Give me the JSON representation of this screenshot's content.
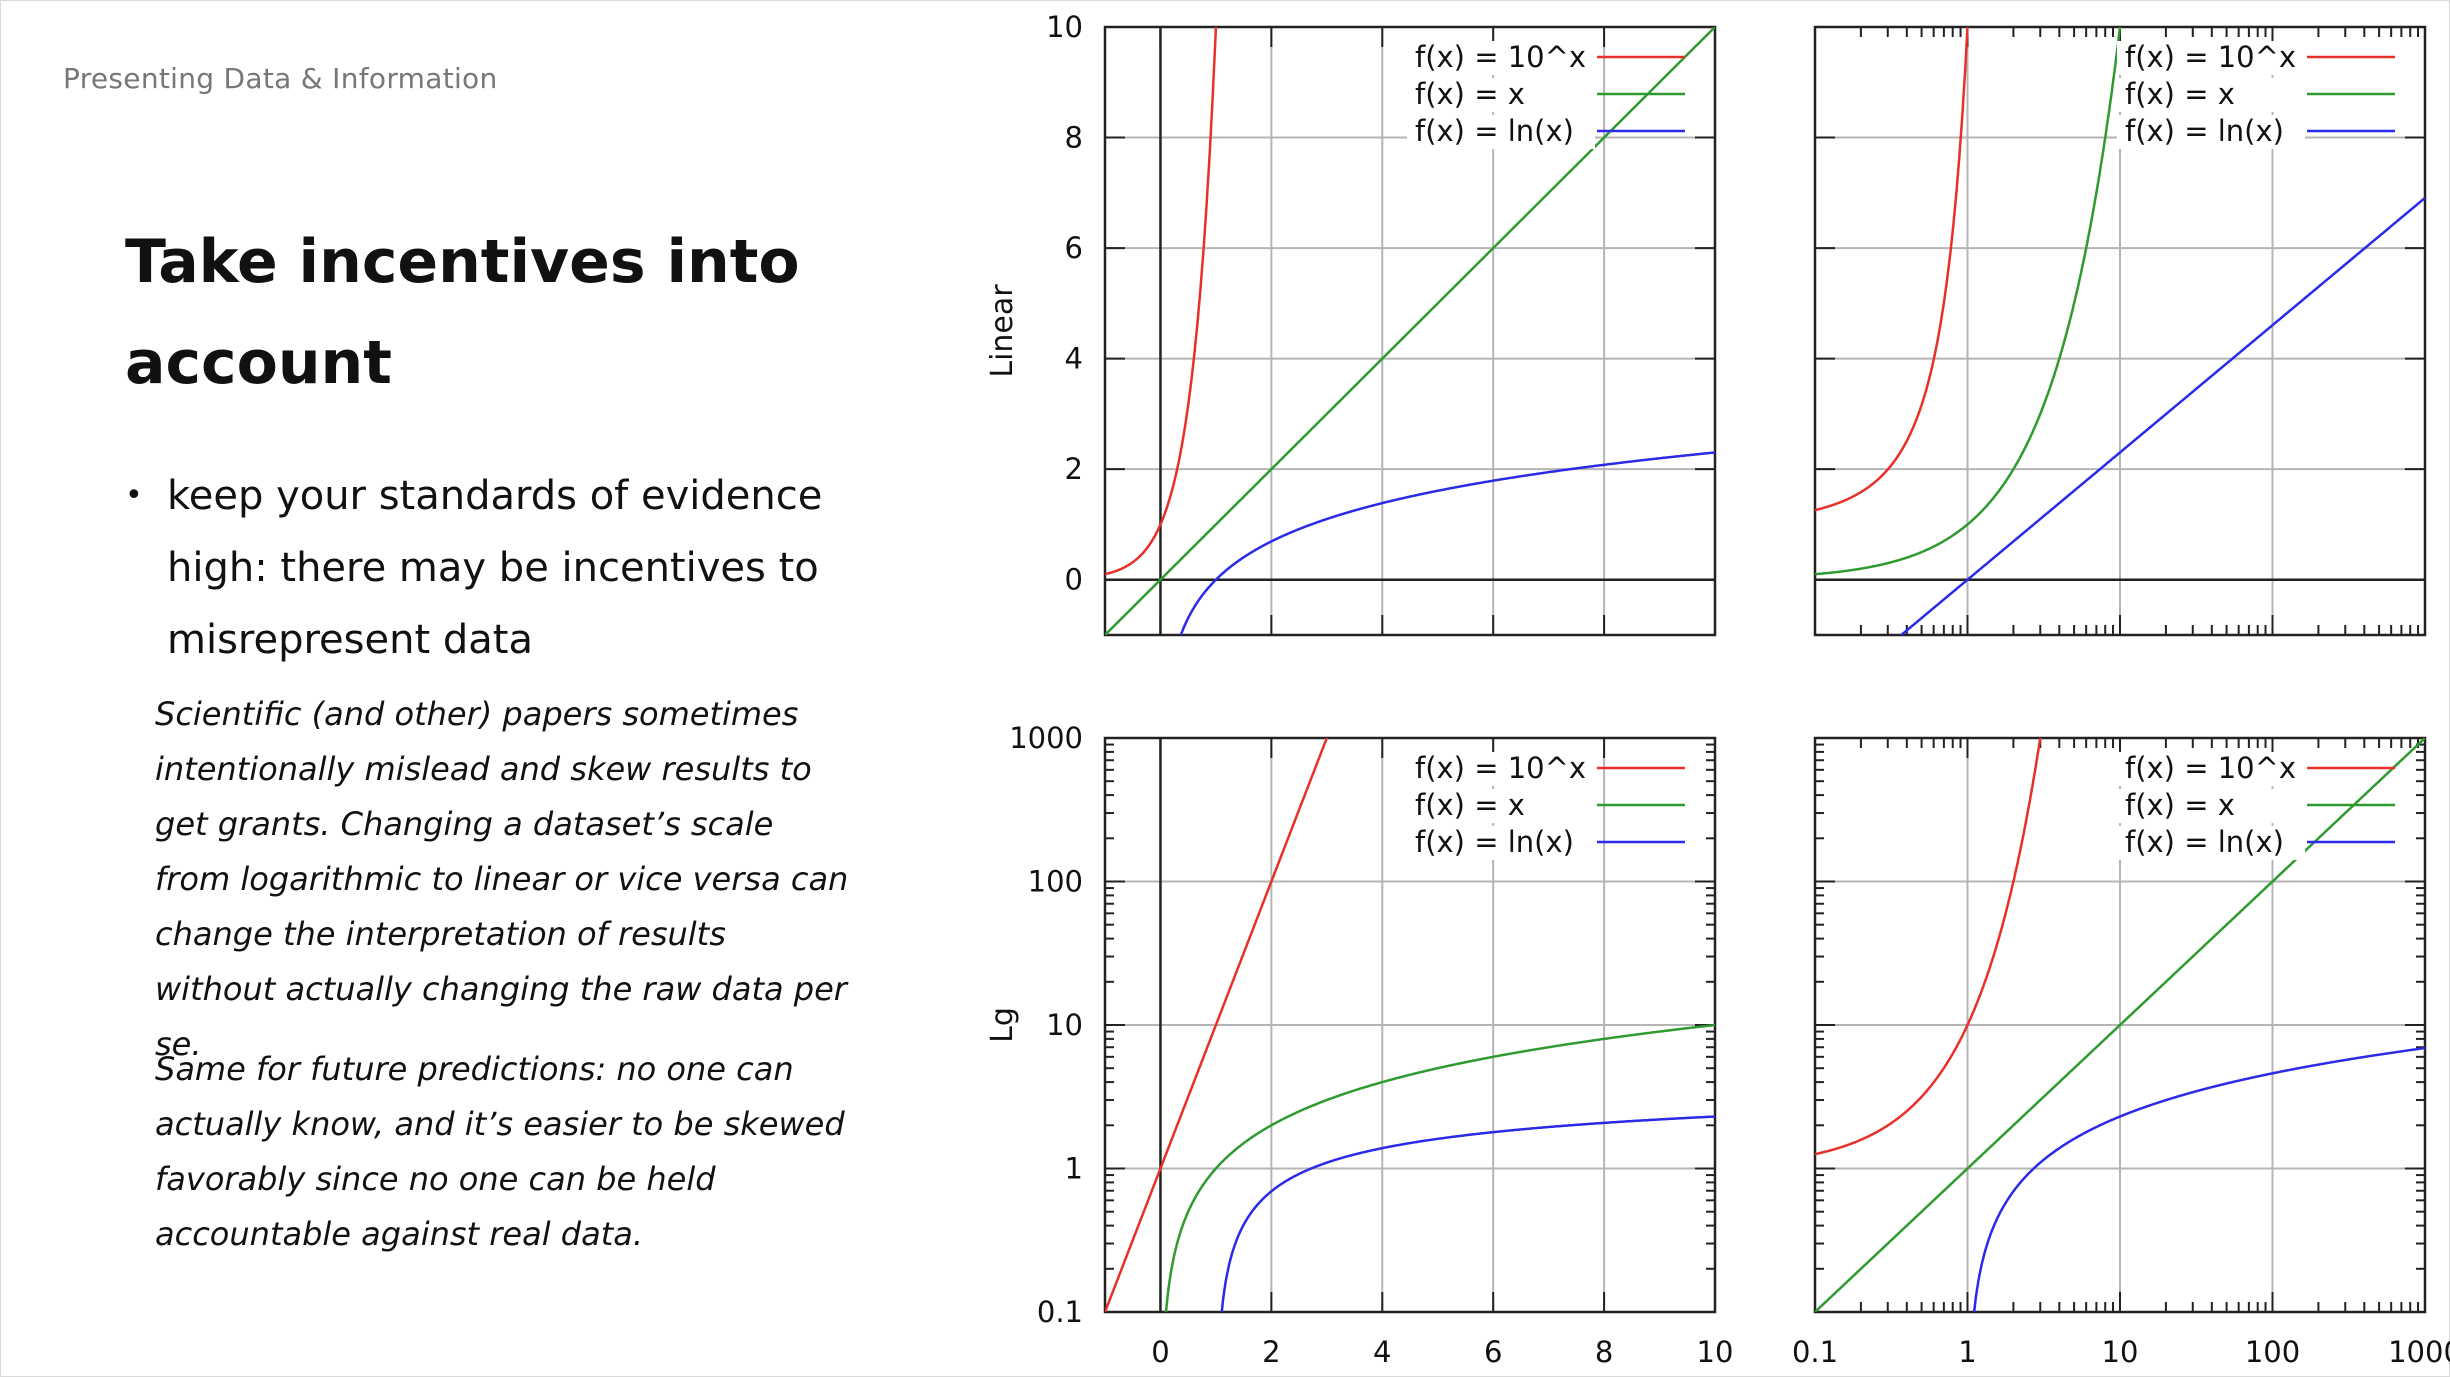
{
  "header": {
    "section": "Presenting Data & Information"
  },
  "slide": {
    "title": "Take incentives into account",
    "bullet": "keep your standards of evidence high: there may be incentives to misrepresent data",
    "paragraph1": "Scientific (and other) papers sometimes intentionally mislead and skew results to get grants. Changing a dataset’s scale from logarithmic to linear or vice versa can change the interpretation of results without actually changing the raw data per se.",
    "paragraph2": "Same for future predictions: no one can actually know, and it’s easier to be skewed favorably since no one can be held accountable against real data."
  },
  "colors": {
    "exp": "#e8302a",
    "lin": "#2f9a2f",
    "log": "#2a2ae8"
  },
  "chart_data": [
    {
      "type": "line",
      "xscale": "linear",
      "yscale": "linear",
      "xlim": [
        -1,
        10
      ],
      "ylim": [
        -1,
        10
      ],
      "ylabel": "Linear",
      "xticks": [],
      "yticks": [
        "10",
        "8",
        "6",
        "4",
        "2",
        "0"
      ],
      "series": [
        {
          "name": "f(x) = 10^x",
          "fn": "exp"
        },
        {
          "name": "f(x) = x",
          "fn": "lin"
        },
        {
          "name": "f(x) = ln(x)",
          "fn": "log"
        }
      ]
    },
    {
      "type": "line",
      "xscale": "log",
      "yscale": "linear",
      "xlim": [
        0.1,
        1000
      ],
      "ylim": [
        -1,
        10
      ],
      "ylabel": "",
      "xticks": [],
      "yticks": [],
      "series": [
        {
          "name": "f(x) = 10^x",
          "fn": "exp"
        },
        {
          "name": "f(x) = x",
          "fn": "lin"
        },
        {
          "name": "f(x) = ln(x)",
          "fn": "log"
        }
      ]
    },
    {
      "type": "line",
      "xscale": "linear",
      "yscale": "log",
      "xlim": [
        -1,
        10
      ],
      "ylim": [
        0.1,
        1000
      ],
      "ylabel": "Lg",
      "xticks": [
        "0",
        "2",
        "4",
        "6",
        "8",
        "10"
      ],
      "yticks": [
        "1000",
        "100",
        "10",
        "1",
        "0.1"
      ],
      "series": [
        {
          "name": "f(x) = 10^x",
          "fn": "exp"
        },
        {
          "name": "f(x) = x",
          "fn": "lin"
        },
        {
          "name": "f(x) = ln(x)",
          "fn": "log"
        }
      ]
    },
    {
      "type": "line",
      "xscale": "log",
      "yscale": "log",
      "xlim": [
        0.1,
        1000
      ],
      "ylim": [
        0.1,
        1000
      ],
      "ylabel": "",
      "xticks": [
        "0.1",
        "1",
        "10",
        "100",
        "1000"
      ],
      "yticks": [],
      "series": [
        {
          "name": "f(x) = 10^x",
          "fn": "exp"
        },
        {
          "name": "f(x) = x",
          "fn": "lin"
        },
        {
          "name": "f(x) = ln(x)",
          "fn": "log"
        }
      ]
    }
  ]
}
